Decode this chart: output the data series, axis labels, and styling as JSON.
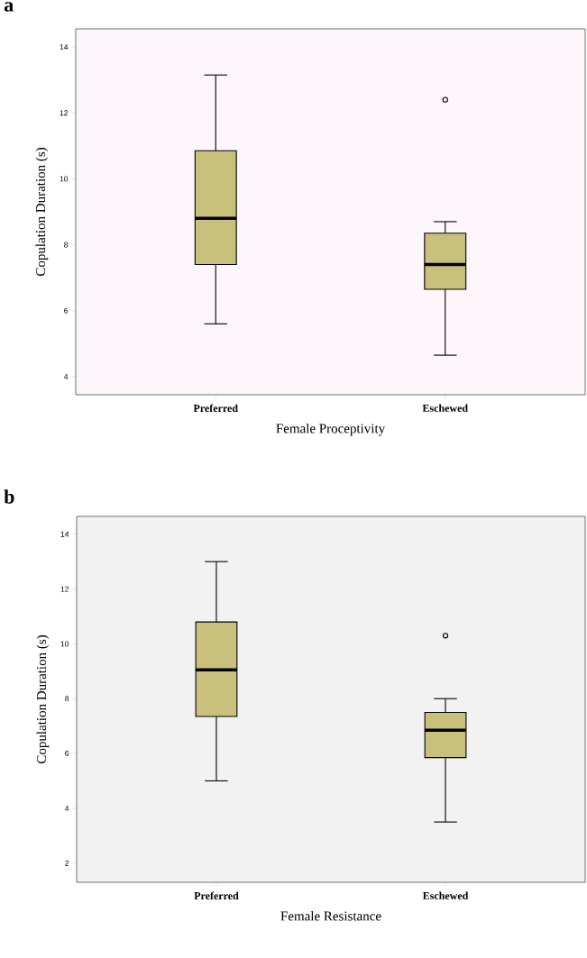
{
  "chart_data": [
    {
      "type": "box",
      "title": "a",
      "categories": [
        "Preferred",
        "Eschewed"
      ],
      "xlabel": "Female Proceptivity",
      "ylabel": "Copulation Duration (s)",
      "ylim": [
        3.45,
        14.55
      ],
      "yticks": [
        4,
        6,
        8,
        10,
        12,
        14
      ],
      "series": [
        {
          "color": "#c9c07c",
          "boxes": [
            {
              "low": 5.6,
              "q1": 7.4,
              "median": 8.8,
              "q3": 10.85,
              "high": 13.15
            },
            {
              "low": 4.65,
              "q1": 6.65,
              "median": 7.4,
              "q3": 8.35,
              "high": 8.7,
              "outliers": [
                12.4
              ]
            }
          ]
        }
      ]
    },
    {
      "type": "box",
      "title": "b",
      "categories": [
        "Preferred",
        "Eschewed"
      ],
      "xlabel": "Female Resistance",
      "ylabel": "Copulation Duration (s)",
      "ylim": [
        1.3,
        14.65
      ],
      "yticks": [
        2,
        4,
        6,
        8,
        10,
        12,
        14
      ],
      "series": [
        {
          "color": "#c9c07c",
          "boxes": [
            {
              "low": 5.0,
              "q1": 7.35,
              "median": 9.05,
              "q3": 10.8,
              "high": 13.0
            },
            {
              "low": 3.5,
              "q1": 5.85,
              "median": 6.85,
              "q3": 7.5,
              "high": 8.0,
              "outliers": [
                10.3
              ]
            }
          ]
        }
      ]
    }
  ]
}
